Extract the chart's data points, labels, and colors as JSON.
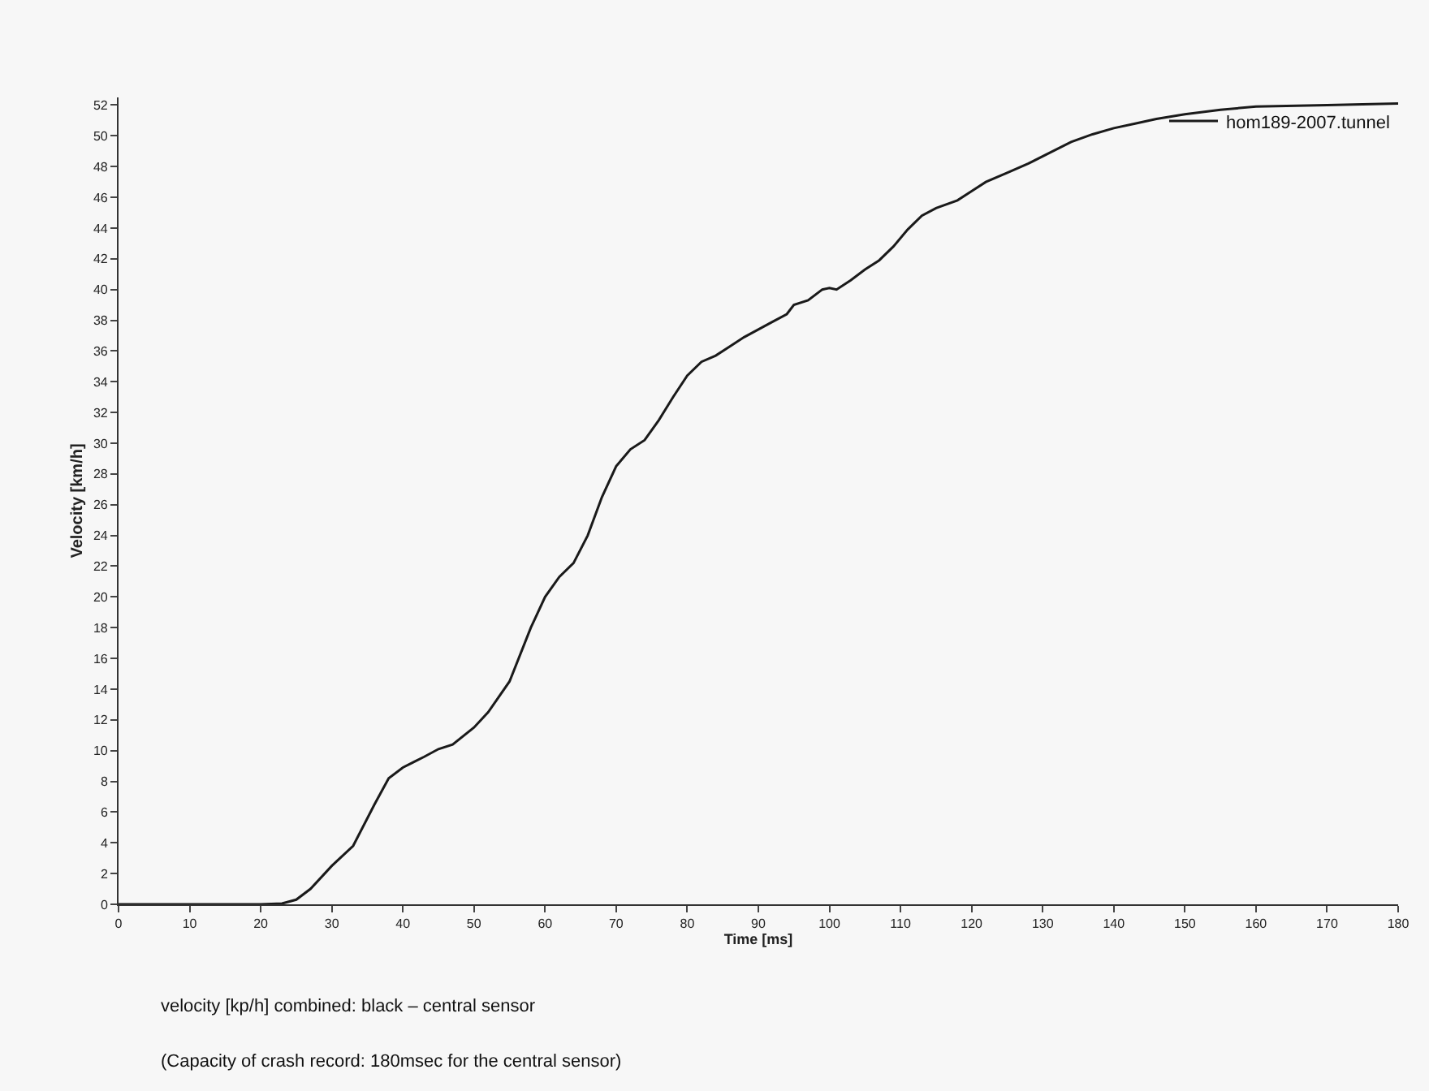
{
  "chart_data": {
    "type": "line",
    "xlabel": "Time [ms]",
    "ylabel": "Velocity [km/h]",
    "xlim": [
      0,
      180
    ],
    "xticks": [
      0,
      10,
      20,
      30,
      40,
      50,
      60,
      70,
      80,
      90,
      100,
      110,
      120,
      130,
      140,
      150,
      160,
      170,
      180
    ],
    "ylim": [
      0,
      52.5
    ],
    "yticks": [
      0,
      2,
      4,
      6,
      8,
      10,
      12,
      14,
      16,
      18,
      20,
      22,
      24,
      26,
      28,
      30,
      32,
      34,
      36,
      38,
      40,
      42,
      44,
      46,
      48,
      50,
      52
    ],
    "grid": false,
    "legend": "top right",
    "marker": "none",
    "line_style": "solid",
    "annotations": [
      "velocity [kp/h] combined: black – central sensor",
      "(Capacity of crash record: 180msec for the central sensor)"
    ],
    "series": [
      {
        "name": "hom189-2007.tunnel",
        "color": "#1a1a1a",
        "x": [
          0,
          20,
          23,
          25,
          27,
          30,
          33,
          36,
          38,
          40,
          43,
          45,
          47,
          50,
          52,
          55,
          58,
          60,
          62,
          64,
          66,
          68,
          70,
          72,
          74,
          76,
          78,
          80,
          82,
          84,
          86,
          88,
          90,
          92,
          94,
          95,
          97,
          99,
          100,
          101,
          103,
          105,
          107,
          109,
          111,
          113,
          115,
          118,
          120,
          122,
          125,
          128,
          131,
          134,
          137,
          140,
          143,
          146,
          150,
          155,
          160,
          170,
          180
        ],
        "values": [
          0,
          0,
          0.05,
          0.3,
          1,
          2.5,
          3.8,
          6.5,
          8.2,
          8.9,
          9.6,
          10.1,
          10.4,
          11.5,
          12.5,
          14.5,
          18,
          20,
          21.3,
          22.2,
          24,
          26.5,
          28.5,
          29.6,
          30.2,
          31.5,
          33,
          34.4,
          35.3,
          35.7,
          36.3,
          36.9,
          37.4,
          37.9,
          38.4,
          39,
          39.3,
          40,
          40.1,
          40,
          40.6,
          41.3,
          41.9,
          42.8,
          43.9,
          44.8,
          45.3,
          45.8,
          46.4,
          47,
          47.6,
          48.2,
          48.9,
          49.6,
          50.1,
          50.5,
          50.8,
          51.1,
          51.4,
          51.7,
          51.9,
          52,
          52.1
        ]
      }
    ]
  }
}
